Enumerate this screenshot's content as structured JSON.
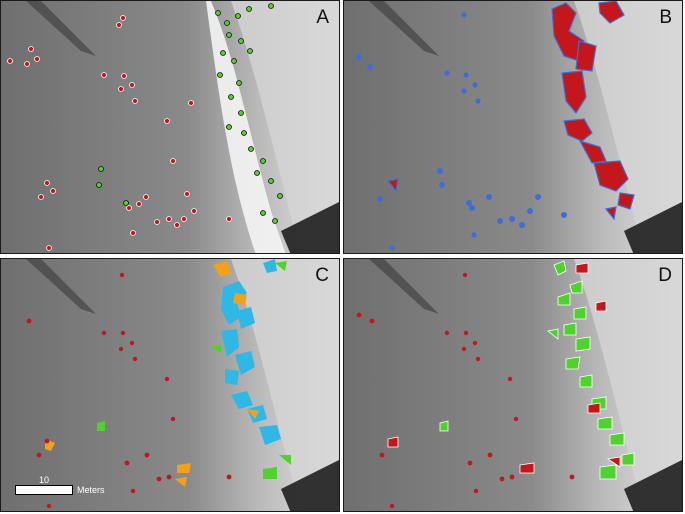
{
  "panels": {
    "a": {
      "label": "A"
    },
    "b": {
      "label": "B"
    },
    "c": {
      "label": "C"
    },
    "d": {
      "label": "D"
    }
  },
  "scale_bar": {
    "value": "10",
    "unit": "Meters"
  },
  "colors": {
    "background_terrain": "#8a8a8a",
    "bright_rocks": "#f2f2f2",
    "red_markers": "#c3171b",
    "green_markers": "#4fd12e",
    "blue_outline": "#3b6fd6",
    "cyan_regions": "#2fb7e6",
    "orange_regions": "#f2a21a"
  }
}
